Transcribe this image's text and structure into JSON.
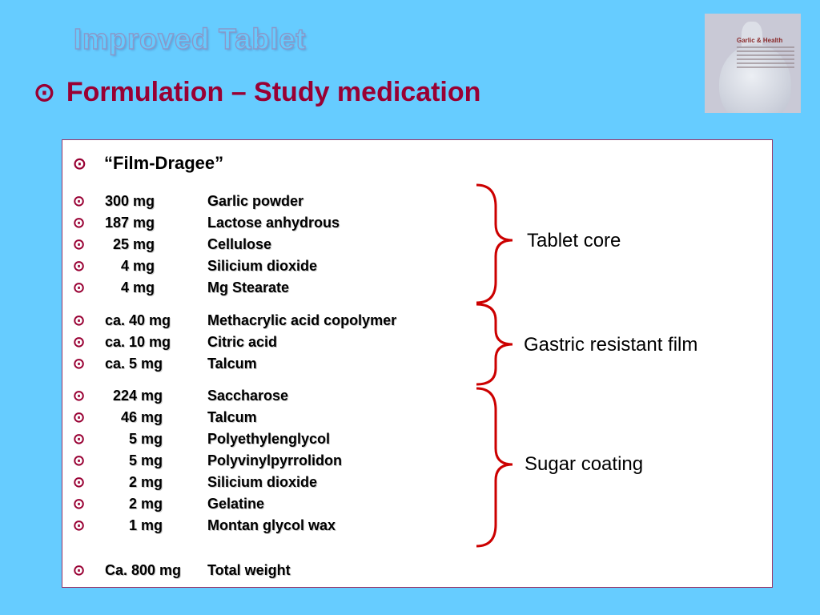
{
  "slide": {
    "title": "Improved Tablet",
    "subtitle": "Formulation – Study medication",
    "bullet_glyph": "⊙",
    "accent_color": "#990033",
    "background_color": "#66ccff"
  },
  "logo": {
    "title": "Garlic & Health"
  },
  "panel": {
    "heading": "“Film-Dragee”",
    "items": [
      {
        "amount": "300 mg",
        "name": "Garlic powder"
      },
      {
        "amount": "187 mg",
        "name": "Lactose anhydrous"
      },
      {
        "amount": "  25 mg",
        "name": "Cellulose"
      },
      {
        "amount": "    4 mg",
        "name": "Silicium dioxide"
      },
      {
        "amount": "    4 mg",
        "name": "Mg Stearate"
      },
      {
        "amount": "ca. 40 mg",
        "name": "Methacrylic acid copolymer"
      },
      {
        "amount": "ca. 10 mg",
        "name": "Citric acid"
      },
      {
        "amount": "ca. 5 mg",
        "name": "Talcum"
      },
      {
        "amount": "  224 mg",
        "name": "Saccharose"
      },
      {
        "amount": "    46 mg",
        "name": "Talcum"
      },
      {
        "amount": "      5 mg",
        "name": "Polyethylenglycol"
      },
      {
        "amount": "      5 mg",
        "name": "Polyvinylpyrrolidon"
      },
      {
        "amount": "      2 mg",
        "name": "Silicium dioxide"
      },
      {
        "amount": "      2 mg",
        "name": "Gelatine"
      },
      {
        "amount": "      1 mg",
        "name": "Montan glycol wax"
      },
      {
        "amount": "Ca. 800 mg",
        "name": "Total weight"
      }
    ],
    "groups": [
      {
        "label": "Tablet core"
      },
      {
        "label": "Gastric resistant film"
      },
      {
        "label": "Sugar coating"
      }
    ]
  }
}
